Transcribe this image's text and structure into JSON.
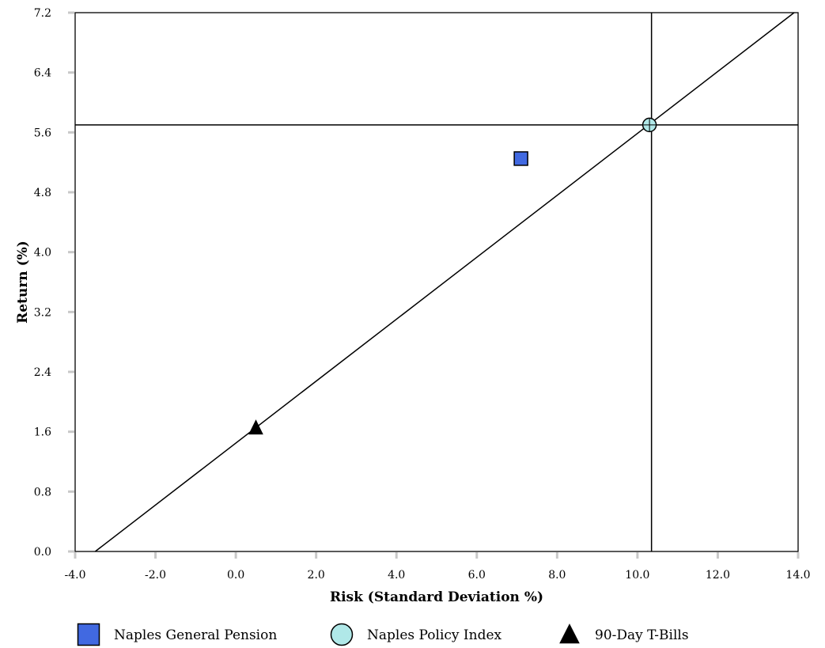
{
  "chart_data": {
    "type": "scatter",
    "title": "",
    "xlabel": "Risk (Standard Deviation %)",
    "ylabel": "Return (%)",
    "xlim": [
      -4.0,
      14.0
    ],
    "ylim": [
      0.0,
      7.2
    ],
    "x_ticks": [
      "-4.0",
      "-2.0",
      "0.0",
      "2.0",
      "4.0",
      "6.0",
      "8.0",
      "10.0",
      "12.0",
      "14.0"
    ],
    "y_ticks": [
      "0.0",
      "0.8",
      "1.6",
      "2.4",
      "3.2",
      "4.0",
      "4.8",
      "5.6",
      "6.4",
      "7.2"
    ],
    "grid": false,
    "legend_position": "bottom",
    "series": [
      {
        "name": "Naples General Pension",
        "marker": "square",
        "color": "#4169e1",
        "x": 7.1,
        "y": 5.25
      },
      {
        "name": "Naples Policy Index",
        "marker": "circle",
        "color": "#b0e8e8",
        "x": 10.3,
        "y": 5.7
      },
      {
        "name": "90-Day T-Bills",
        "marker": "triangle",
        "color": "#000000",
        "x": 0.5,
        "y": 1.65
      }
    ],
    "reference_lines": {
      "horizontal_y": 5.7,
      "vertical_x": 10.35,
      "market_line": {
        "from": [
          -3.5,
          0.0
        ],
        "to": [
          13.9,
          7.2
        ]
      }
    }
  }
}
